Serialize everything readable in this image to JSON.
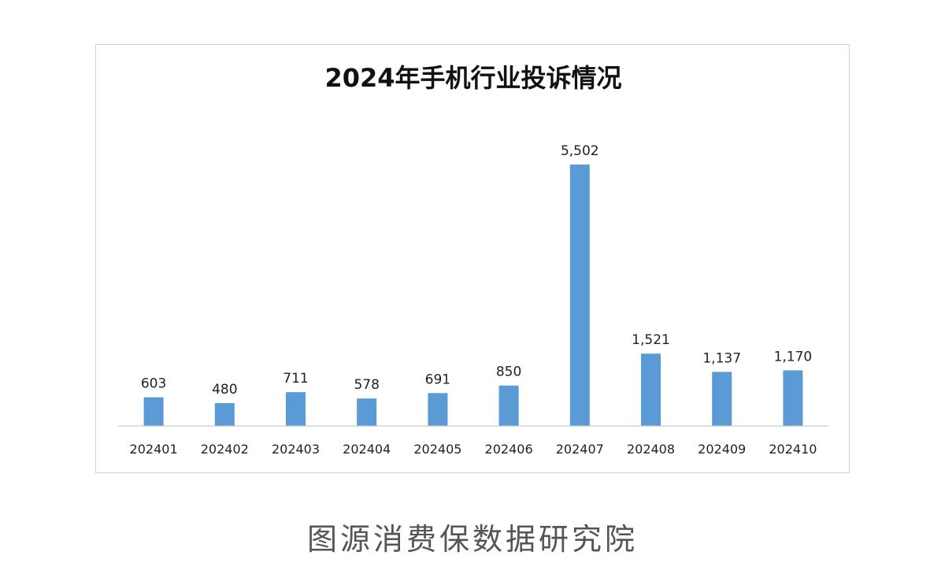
{
  "colors": {
    "bar": "#5b9bd5",
    "axis": "#bfbfbf"
  },
  "caption": "图源消费保数据研究院",
  "chart_data": {
    "type": "bar",
    "title": "2024年手机行业投诉情况",
    "xlabel": "",
    "ylabel": "",
    "categories": [
      "202401",
      "202402",
      "202403",
      "202404",
      "202405",
      "202406",
      "202407",
      "202408",
      "202409",
      "202410"
    ],
    "values": [
      603,
      480,
      711,
      578,
      691,
      850,
      5502,
      1521,
      1137,
      1170
    ],
    "data_labels": [
      "603",
      "480",
      "711",
      "578",
      "691",
      "850",
      "5,502",
      "1,521",
      "1,137",
      "1,170"
    ],
    "ylim": [
      0,
      5800
    ],
    "grid": false,
    "legend": "none"
  }
}
